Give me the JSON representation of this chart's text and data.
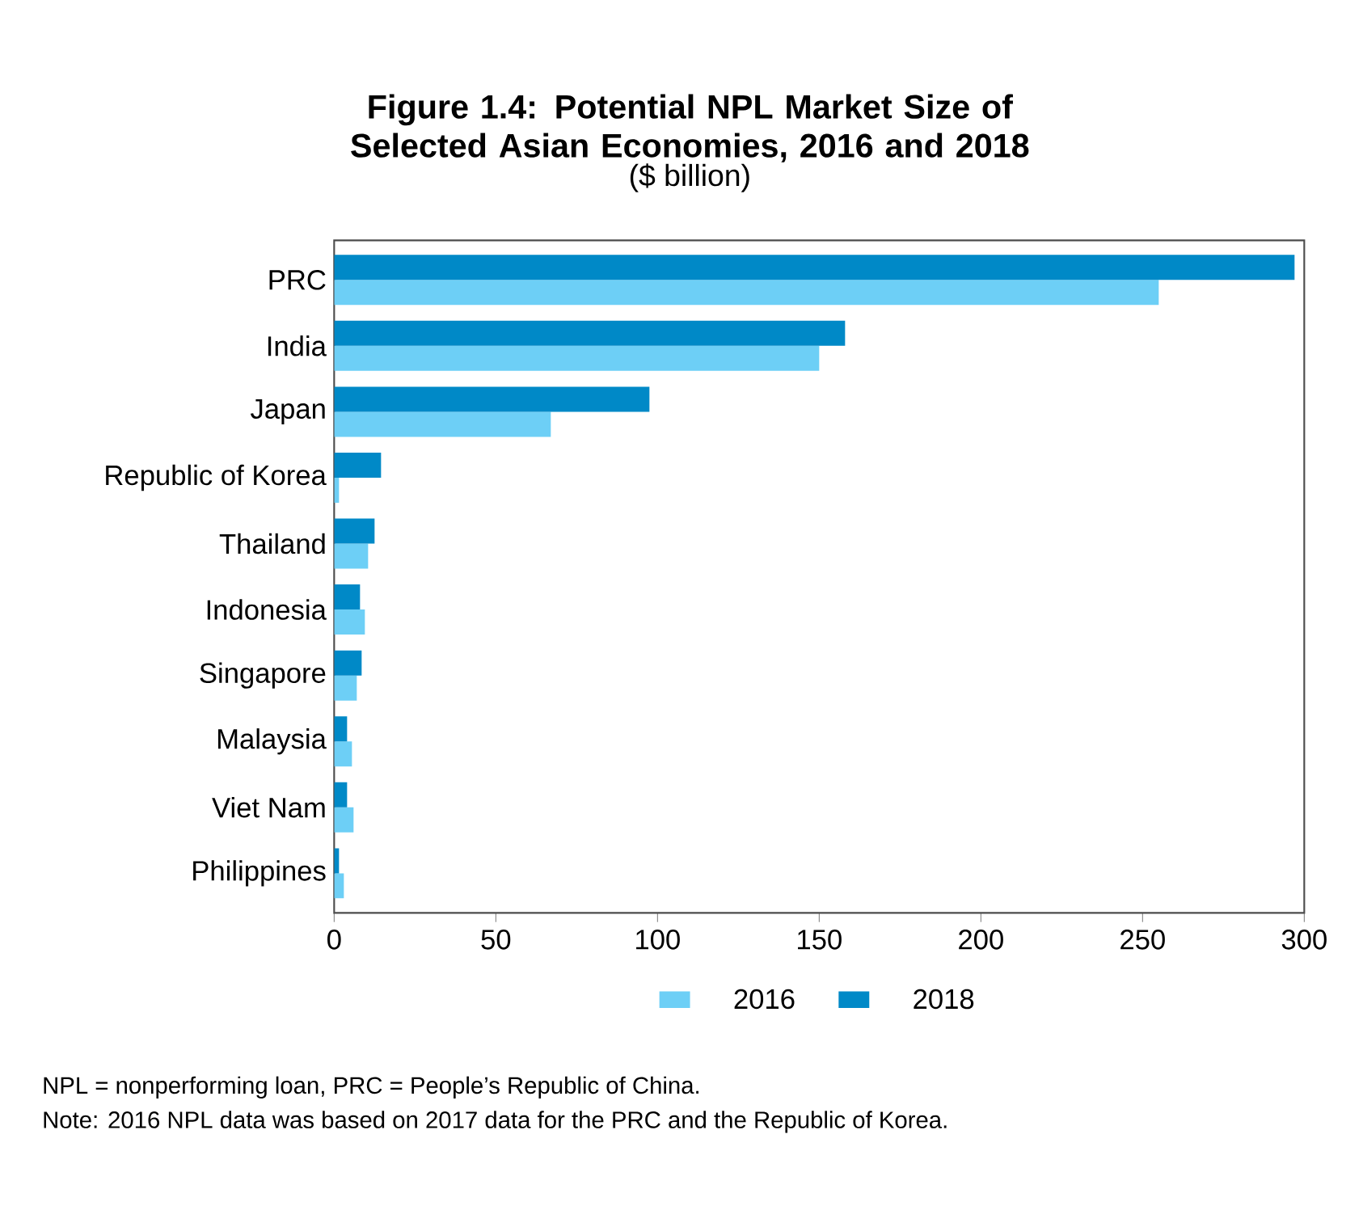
{
  "chart_data": {
    "type": "bar",
    "orientation": "horizontal",
    "title": "Figure 1.4: Potential NPL Market Size of Selected Asian Economies, 2016 and 2018",
    "subtitle": "($ billion)",
    "categories": [
      "PRC",
      "India",
      "Japan",
      "Republic of Korea",
      "Thailand",
      "Indonesia",
      "Singapore",
      "Malaysia",
      "Viet Nam",
      "Philippines"
    ],
    "series": [
      {
        "name": "2016",
        "color": "#6dcff6",
        "values": [
          255,
          150,
          67,
          1.5,
          10.5,
          9.5,
          7,
          5.5,
          6,
          3
        ]
      },
      {
        "name": "2018",
        "color": "#0089c7",
        "values": [
          297,
          158,
          97.5,
          14.5,
          12.5,
          8,
          8.5,
          4,
          4,
          1.5
        ]
      }
    ],
    "xlim": [
      0,
      300
    ],
    "xticks": [
      0,
      50,
      100,
      150,
      200,
      250,
      300
    ],
    "grid": false,
    "legend": "bottom",
    "annotations": [
      "NPL = nonperforming loan, PRC = People’s Republic of China.",
      "Note: 2016 NPL data was based on 2017 data for the PRC and the Republic of Korea."
    ]
  }
}
